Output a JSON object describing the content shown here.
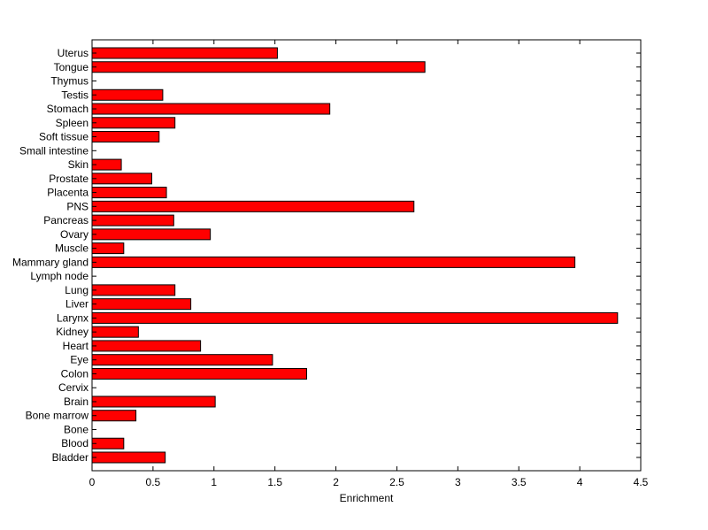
{
  "chart_data": {
    "type": "bar",
    "orientation": "horizontal",
    "title": "",
    "xlabel": "Enrichment",
    "ylabel": "",
    "xlim": [
      0,
      4.5
    ],
    "xticks": [
      "0",
      "0.5",
      "1",
      "1.5",
      "2",
      "2.5",
      "3",
      "3.5",
      "4",
      "4.5"
    ],
    "grid": false,
    "bar_color": "#ff0000",
    "edge_color": "#000000",
    "categories": [
      "Bladder",
      "Blood",
      "Bone",
      "Bone marrow",
      "Brain",
      "Cervix",
      "Colon",
      "Eye",
      "Heart",
      "Kidney",
      "Larynx",
      "Liver",
      "Lung",
      "Lymph node",
      "Mammary gland",
      "Muscle",
      "Ovary",
      "Pancreas",
      "PNS",
      "Placenta",
      "Prostate",
      "Skin",
      "Small intestine",
      "Soft tissue",
      "Spleen",
      "Stomach",
      "Testis",
      "Thymus",
      "Tongue",
      "Uterus"
    ],
    "values": [
      0.6,
      0.26,
      0,
      0.36,
      1.01,
      0,
      1.76,
      1.48,
      0.89,
      0.38,
      4.31,
      0.81,
      0.68,
      0,
      3.96,
      0.26,
      0.97,
      0.67,
      2.64,
      0.61,
      0.49,
      0.24,
      0,
      0.55,
      0.68,
      1.95,
      0.58,
      0,
      2.73,
      1.52
    ]
  }
}
